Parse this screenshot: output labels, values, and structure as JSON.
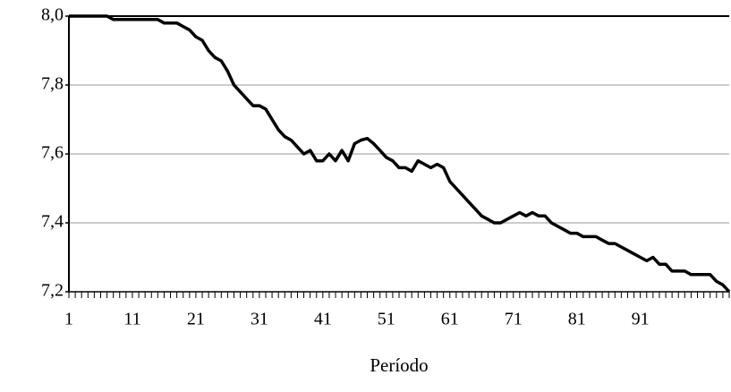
{
  "chart_data": {
    "type": "line",
    "x_label": "Período",
    "x": [
      1,
      2,
      3,
      4,
      5,
      6,
      7,
      8,
      9,
      10,
      11,
      12,
      13,
      14,
      15,
      16,
      17,
      18,
      19,
      20,
      21,
      22,
      23,
      24,
      25,
      26,
      27,
      28,
      29,
      30,
      31,
      32,
      33,
      34,
      35,
      36,
      37,
      38,
      39,
      40,
      41,
      42,
      43,
      44,
      45,
      46,
      47,
      48,
      49,
      50,
      51,
      52,
      53,
      54,
      55,
      56,
      57,
      58,
      59,
      60,
      61,
      62,
      63,
      64,
      65,
      66,
      67,
      68,
      69,
      70,
      71,
      72,
      73,
      74,
      75,
      76,
      77,
      78,
      79,
      80,
      81,
      82,
      83,
      84,
      85,
      86,
      87,
      88,
      89,
      90,
      91,
      92,
      93,
      94,
      95,
      96,
      97,
      98,
      99,
      100,
      101,
      102,
      103,
      104,
      105
    ],
    "series": [
      {
        "color": "#000000",
        "values": [
          8.0,
          8.0,
          8.0,
          8.0,
          8.0,
          8.0,
          8.0,
          7.99,
          7.99,
          7.99,
          7.99,
          7.99,
          7.99,
          7.99,
          7.99,
          7.98,
          7.98,
          7.98,
          7.97,
          7.96,
          7.94,
          7.93,
          7.9,
          7.88,
          7.87,
          7.84,
          7.8,
          7.78,
          7.76,
          7.74,
          7.74,
          7.73,
          7.7,
          7.67,
          7.65,
          7.64,
          7.62,
          7.6,
          7.61,
          7.58,
          7.58,
          7.6,
          7.58,
          7.61,
          7.58,
          7.63,
          7.64,
          7.645,
          7.63,
          7.61,
          7.59,
          7.58,
          7.56,
          7.56,
          7.55,
          7.58,
          7.57,
          7.56,
          7.57,
          7.56,
          7.52,
          7.5,
          7.48,
          7.46,
          7.44,
          7.42,
          7.41,
          7.4,
          7.4,
          7.41,
          7.42,
          7.43,
          7.42,
          7.43,
          7.42,
          7.42,
          7.4,
          7.39,
          7.38,
          7.37,
          7.37,
          7.36,
          7.36,
          7.36,
          7.35,
          7.34,
          7.34,
          7.33,
          7.32,
          7.31,
          7.3,
          7.29,
          7.3,
          7.28,
          7.28,
          7.26,
          7.26,
          7.26,
          7.25,
          7.25,
          7.25,
          7.25,
          7.23,
          7.22,
          7.2
        ]
      }
    ],
    "xlim": [
      1,
      105
    ],
    "xticks": [
      1,
      11,
      21,
      31,
      41,
      51,
      61,
      71,
      81,
      91
    ],
    "ylim": [
      7.2,
      8.0
    ],
    "yticks": [
      {
        "value": 7.2,
        "label": "7,2"
      },
      {
        "value": 7.4,
        "label": "7,4"
      },
      {
        "value": 7.6,
        "label": "7,6"
      },
      {
        "value": 7.8,
        "label": "7,8"
      },
      {
        "value": 8.0,
        "label": "8,0"
      }
    ],
    "grid": true
  }
}
